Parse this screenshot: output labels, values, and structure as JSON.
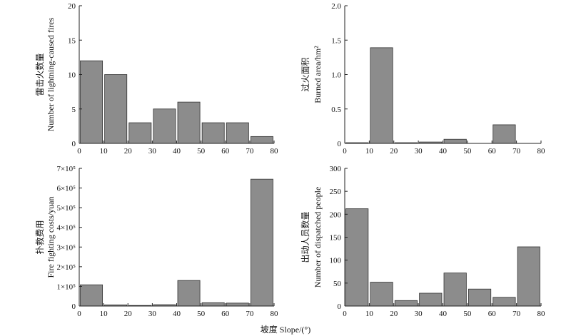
{
  "figure": {
    "xlabel": "坡度 Slope/(°)"
  },
  "style": {
    "bar_fill": "#8c8c8c",
    "bar_stroke": "#333333",
    "axis_color": "#222222"
  },
  "chart_data": [
    {
      "type": "bar",
      "ylabel_cn": "雷击火数量",
      "ylabel_en": "Number of lightning-caused fires",
      "xlim": [
        0,
        80
      ],
      "xticks": [
        "0",
        "10",
        "20",
        "30",
        "40",
        "50",
        "60",
        "70",
        "80"
      ],
      "ylim": [
        0,
        20
      ],
      "yticks": [
        "0",
        "5",
        "10",
        "15",
        "20"
      ],
      "bins": [
        [
          0,
          10
        ],
        [
          10,
          20
        ],
        [
          20,
          30
        ],
        [
          30,
          40
        ],
        [
          40,
          50
        ],
        [
          50,
          60
        ],
        [
          60,
          70
        ],
        [
          70,
          80
        ]
      ],
      "values": [
        12,
        10,
        3,
        5,
        6,
        3,
        3,
        1
      ]
    },
    {
      "type": "bar",
      "ylabel_cn": "过火面积",
      "ylabel_en": "Burned area/hm²",
      "xlim": [
        0,
        80
      ],
      "xticks": [
        "0",
        "10",
        "20",
        "30",
        "40",
        "50",
        "60",
        "70",
        "80"
      ],
      "ylim": [
        0,
        2.0
      ],
      "yticks": [
        "0",
        "0.5",
        "1.0",
        "1.5",
        "2.0"
      ],
      "bins": [
        [
          0,
          10
        ],
        [
          10,
          20
        ],
        [
          20,
          30
        ],
        [
          30,
          40
        ],
        [
          40,
          50
        ],
        [
          50,
          60
        ],
        [
          60,
          70
        ],
        [
          70,
          80
        ]
      ],
      "values": [
        0.01,
        1.39,
        0.01,
        0.02,
        0.06,
        0,
        0.27,
        0
      ]
    },
    {
      "type": "bar",
      "ylabel_cn": "扑救费用",
      "ylabel_en": "Fire fighting costs/yuan",
      "xlim": [
        0,
        80
      ],
      "xticks": [
        "0",
        "10",
        "20",
        "30",
        "40",
        "50",
        "60",
        "70",
        "80"
      ],
      "ylim": [
        0,
        700000
      ],
      "yticks": [
        "0",
        "1×10⁵",
        "2×10⁵",
        "3×10⁵",
        "4×10⁵",
        "5×10⁵",
        "6×10⁵",
        "7×10⁵"
      ],
      "bins": [
        [
          0,
          10
        ],
        [
          10,
          20
        ],
        [
          20,
          30
        ],
        [
          30,
          40
        ],
        [
          40,
          50
        ],
        [
          50,
          60
        ],
        [
          60,
          70
        ],
        [
          70,
          80
        ]
      ],
      "values": [
        108000,
        6000,
        3000,
        7000,
        130000,
        17000,
        15000,
        645000
      ]
    },
    {
      "type": "bar",
      "ylabel_cn": "出动人员数量",
      "ylabel_en": "Number of dispatched people",
      "xlim": [
        0,
        80
      ],
      "xticks": [
        "0",
        "10",
        "20",
        "30",
        "40",
        "50",
        "60",
        "70",
        "80"
      ],
      "ylim": [
        0,
        300
      ],
      "yticks": [
        "0",
        "50",
        "100",
        "150",
        "200",
        "250",
        "300"
      ],
      "bins": [
        [
          0,
          10
        ],
        [
          10,
          20
        ],
        [
          20,
          30
        ],
        [
          30,
          40
        ],
        [
          40,
          50
        ],
        [
          50,
          60
        ],
        [
          60,
          70
        ],
        [
          70,
          80
        ]
      ],
      "values": [
        212,
        52,
        12,
        28,
        72,
        37,
        19,
        129
      ]
    }
  ]
}
